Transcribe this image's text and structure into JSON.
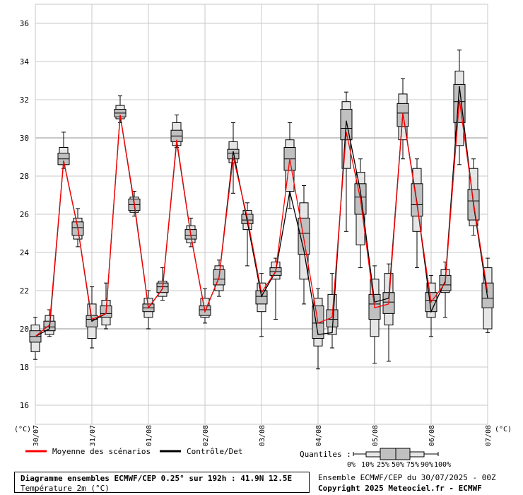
{
  "chart_data": {
    "type": "boxplot",
    "ylim": [
      15,
      37
    ],
    "yticks": [
      16,
      18,
      20,
      22,
      24,
      26,
      28,
      30,
      32,
      34,
      36
    ],
    "unit_left": "(°C)",
    "unit_right": "(°C)",
    "xlim_hours": [
      0,
      192
    ],
    "xticks": [
      {
        "h": 0,
        "label": "30/07"
      },
      {
        "h": 24,
        "label": "31/07"
      },
      {
        "h": 48,
        "label": "01/08"
      },
      {
        "h": 72,
        "label": "02/08"
      },
      {
        "h": 96,
        "label": "03/08"
      },
      {
        "h": 120,
        "label": "04/08"
      },
      {
        "h": 144,
        "label": "05/08"
      },
      {
        "h": 168,
        "label": "06/08"
      },
      {
        "h": 192,
        "label": "07/08"
      }
    ],
    "grid": true,
    "series": [
      {
        "name": "Moyenne des scénarios",
        "color": "#ff0000"
      },
      {
        "name": "Contrôle/Det",
        "color": "#000000"
      }
    ],
    "boxes": [
      {
        "h": 0,
        "p0": 18.4,
        "p10": 18.8,
        "p25": 19.3,
        "p50": 19.6,
        "p75": 19.9,
        "p90": 20.2,
        "p100": 20.6,
        "mean": 19.6,
        "control": 19.6
      },
      {
        "h": 6,
        "p0": 19.6,
        "p10": 19.7,
        "p25": 19.9,
        "p50": 20.1,
        "p75": 20.4,
        "p90": 20.7,
        "p100": 21.0,
        "mean": 20.2,
        "control": 20.0
      },
      {
        "h": 12,
        "p0": 28.4,
        "p10": 28.6,
        "p25": 28.6,
        "p50": 28.9,
        "p75": 29.2,
        "p90": 29.5,
        "p100": 30.3,
        "mean": 28.8,
        "control": 28.8
      },
      {
        "h": 18,
        "p0": 24.3,
        "p10": 24.7,
        "p25": 24.9,
        "p50": 25.3,
        "p75": 25.6,
        "p90": 25.8,
        "p100": 26.3,
        "mean": 25.3,
        "control": 25.3
      },
      {
        "h": 24,
        "p0": 19.0,
        "p10": 19.5,
        "p25": 20.1,
        "p50": 20.5,
        "p75": 20.7,
        "p90": 21.3,
        "p100": 22.2,
        "mean": 20.5,
        "control": 20.4
      },
      {
        "h": 30,
        "p0": 20.0,
        "p10": 20.2,
        "p25": 20.6,
        "p50": 20.8,
        "p75": 21.2,
        "p90": 21.5,
        "p100": 22.4,
        "mean": 20.8,
        "control": 20.8
      },
      {
        "h": 36,
        "p0": 30.8,
        "p10": 31.0,
        "p25": 31.1,
        "p50": 31.3,
        "p75": 31.5,
        "p90": 31.7,
        "p100": 32.2,
        "mean": 31.2,
        "control": 31.2
      },
      {
        "h": 42,
        "p0": 25.9,
        "p10": 26.1,
        "p25": 26.2,
        "p50": 26.5,
        "p75": 26.8,
        "p90": 26.9,
        "p100": 27.2,
        "mean": 26.6,
        "control": 26.5
      },
      {
        "h": 48,
        "p0": 20.0,
        "p10": 20.6,
        "p25": 20.9,
        "p50": 21.1,
        "p75": 21.3,
        "p90": 21.6,
        "p100": 22.0,
        "mean": 21.1,
        "control": 21.1
      },
      {
        "h": 54,
        "p0": 21.5,
        "p10": 21.7,
        "p25": 21.9,
        "p50": 22.2,
        "p75": 22.4,
        "p90": 22.5,
        "p100": 23.2,
        "mean": 22.1,
        "control": 22.1
      },
      {
        "h": 60,
        "p0": 29.5,
        "p10": 29.6,
        "p25": 29.8,
        "p50": 30.1,
        "p75": 30.4,
        "p90": 30.8,
        "p100": 31.2,
        "mean": 29.9,
        "control": 29.8
      },
      {
        "h": 66,
        "p0": 24.3,
        "p10": 24.5,
        "p25": 24.7,
        "p50": 24.9,
        "p75": 25.2,
        "p90": 25.4,
        "p100": 25.8,
        "mean": 24.9,
        "control": 24.9
      },
      {
        "h": 72,
        "p0": 20.3,
        "p10": 20.6,
        "p25": 20.7,
        "p50": 21.0,
        "p75": 21.2,
        "p90": 21.6,
        "p100": 22.1,
        "mean": 20.9,
        "control": 20.9
      },
      {
        "h": 78,
        "p0": 21.7,
        "p10": 22.0,
        "p25": 22.3,
        "p50": 22.6,
        "p75": 23.1,
        "p90": 23.3,
        "p100": 23.6,
        "mean": 22.7,
        "control": 22.7
      },
      {
        "h": 84,
        "p0": 27.1,
        "p10": 28.7,
        "p25": 28.9,
        "p50": 29.2,
        "p75": 29.4,
        "p90": 29.8,
        "p100": 30.8,
        "mean": 29.0,
        "control": 29.3
      },
      {
        "h": 90,
        "p0": 23.3,
        "p10": 25.2,
        "p25": 25.5,
        "p50": 25.7,
        "p75": 26.0,
        "p90": 26.2,
        "p100": 26.6,
        "mean": 25.8,
        "control": 25.6
      },
      {
        "h": 96,
        "p0": 19.6,
        "p10": 20.9,
        "p25": 21.3,
        "p50": 21.7,
        "p75": 22.0,
        "p90": 22.4,
        "p100": 22.9,
        "mean": 21.9,
        "control": 21.7
      },
      {
        "h": 102,
        "p0": 20.5,
        "p10": 22.6,
        "p25": 22.8,
        "p50": 23.0,
        "p75": 23.2,
        "p90": 23.5,
        "p100": 23.7,
        "mean": 23.0,
        "control": 23.0
      },
      {
        "h": 108,
        "p0": 26.3,
        "p10": 27.2,
        "p25": 28.3,
        "p50": 28.9,
        "p75": 29.5,
        "p90": 29.9,
        "p100": 30.8,
        "mean": 28.9,
        "control": 27.2
      },
      {
        "h": 114,
        "p0": 21.3,
        "p10": 22.6,
        "p25": 23.9,
        "p50": 25.0,
        "p75": 25.8,
        "p90": 26.6,
        "p100": 27.5,
        "mean": 24.7,
        "control": 24.1
      },
      {
        "h": 120,
        "p0": 17.9,
        "p10": 19.1,
        "p25": 19.5,
        "p50": 20.3,
        "p75": 21.2,
        "p90": 21.6,
        "p100": 22.1,
        "mean": 20.3,
        "control": 19.7
      },
      {
        "h": 126,
        "p0": 19.0,
        "p10": 19.7,
        "p25": 20.1,
        "p50": 20.5,
        "p75": 21.0,
        "p90": 21.8,
        "p100": 22.9,
        "mean": 20.6,
        "control": 19.8
      },
      {
        "h": 132,
        "p0": 25.1,
        "p10": 28.4,
        "p25": 29.9,
        "p50": 30.5,
        "p75": 31.5,
        "p90": 31.9,
        "p100": 32.4,
        "mean": 30.3,
        "control": 30.9
      },
      {
        "h": 138,
        "p0": 23.2,
        "p10": 24.4,
        "p25": 26.0,
        "p50": 26.9,
        "p75": 27.6,
        "p90": 28.2,
        "p100": 28.9,
        "mean": 26.8,
        "control": 27.2
      },
      {
        "h": 144,
        "p0": 18.2,
        "p10": 19.6,
        "p25": 20.5,
        "p50": 21.3,
        "p75": 21.8,
        "p90": 22.6,
        "p100": 23.3,
        "mean": 21.1,
        "control": 21.4
      },
      {
        "h": 150,
        "p0": 18.3,
        "p10": 20.2,
        "p25": 20.8,
        "p50": 21.4,
        "p75": 21.9,
        "p90": 22.9,
        "p100": 23.4,
        "mean": 21.3,
        "control": 21.6
      },
      {
        "h": 156,
        "p0": 28.9,
        "p10": 29.9,
        "p25": 30.6,
        "p50": 31.3,
        "p75": 31.8,
        "p90": 32.3,
        "p100": 33.1,
        "mean": 31.3,
        "control": 31.3
      },
      {
        "h": 162,
        "p0": 23.2,
        "p10": 25.1,
        "p25": 25.9,
        "p50": 26.5,
        "p75": 27.6,
        "p90": 28.4,
        "p100": 28.9,
        "mean": 26.5,
        "control": 26.6
      },
      {
        "h": 168,
        "p0": 19.6,
        "p10": 20.6,
        "p25": 20.9,
        "p50": 21.5,
        "p75": 21.9,
        "p90": 22.4,
        "p100": 22.8,
        "mean": 21.4,
        "control": 20.9
      },
      {
        "h": 174,
        "p0": 20.6,
        "p10": 21.9,
        "p25": 22.0,
        "p50": 22.3,
        "p75": 22.8,
        "p90": 23.1,
        "p100": 23.5,
        "mean": 22.4,
        "control": 22.5
      },
      {
        "h": 180,
        "p0": 28.6,
        "p10": 29.6,
        "p25": 30.8,
        "p50": 31.9,
        "p75": 32.8,
        "p90": 33.5,
        "p100": 34.6,
        "mean": 32.0,
        "control": 32.7
      },
      {
        "h": 186,
        "p0": 24.9,
        "p10": 25.4,
        "p25": 25.7,
        "p50": 26.7,
        "p75": 27.3,
        "p90": 28.4,
        "p100": 28.9,
        "mean": 26.6,
        "control": 26.5
      },
      {
        "h": 192,
        "p0": 19.8,
        "p10": 20.0,
        "p25": 21.1,
        "p50": 21.6,
        "p75": 22.4,
        "p90": 23.2,
        "p100": 23.7,
        "mean": 21.9,
        "control": 21.6
      }
    ]
  },
  "legend": {
    "mean_label": "Moyenne des scénarios",
    "control_label": "Contrôle/Det",
    "quantiles_label": "Quantiles :",
    "quantile_values": [
      "0%",
      "10%",
      "25%",
      "50%",
      "75%",
      "90%",
      "100%"
    ]
  },
  "title": {
    "line1": "Diagramme ensembles ECMWF/CEP 0.25° sur 192h : 41.9N 12.5E",
    "line2": "Température 2m (°C)"
  },
  "run_info": "Ensemble ECMWF/CEP du 30/07/2025 - 00Z",
  "copyright": "Copyright 2025 Meteociel.fr - ECMWF",
  "colors": {
    "mean": "#ff0000",
    "control": "#000000",
    "box_fill": "#c0c0c0",
    "grid": "#c8c8c8"
  }
}
